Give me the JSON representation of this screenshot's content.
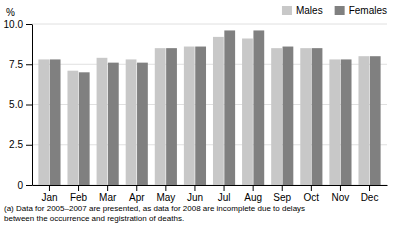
{
  "chart_data": {
    "type": "bar",
    "ylabel": "%",
    "categories": [
      "Jan",
      "Feb",
      "Mar",
      "Apr",
      "May",
      "Jun",
      "Jul",
      "Aug",
      "Sep",
      "Oct",
      "Nov",
      "Dec"
    ],
    "series": [
      {
        "name": "Males",
        "color": "#c8c8c8",
        "values": [
          7.8,
          7.1,
          7.9,
          7.8,
          8.5,
          8.6,
          9.2,
          9.1,
          8.5,
          8.5,
          7.8,
          8.0
        ]
      },
      {
        "name": "Females",
        "color": "#808080",
        "values": [
          7.8,
          7.0,
          7.6,
          7.6,
          8.5,
          8.6,
          9.6,
          9.6,
          8.6,
          8.5,
          7.8,
          8.0
        ]
      }
    ],
    "ylim": [
      0,
      10.0
    ],
    "yticks": [
      0,
      2.5,
      {
        "value": 5.0,
        "label": "5.0"
      },
      7.5,
      {
        "value": 10.0,
        "label": "10.0"
      }
    ],
    "grid": true,
    "legend": "upper-right",
    "annotations": [
      "(a) Data for 2005–2007 are presented, as data for 2008 are incomplete due to delays",
      "between the occurrence and registration of deaths."
    ]
  }
}
